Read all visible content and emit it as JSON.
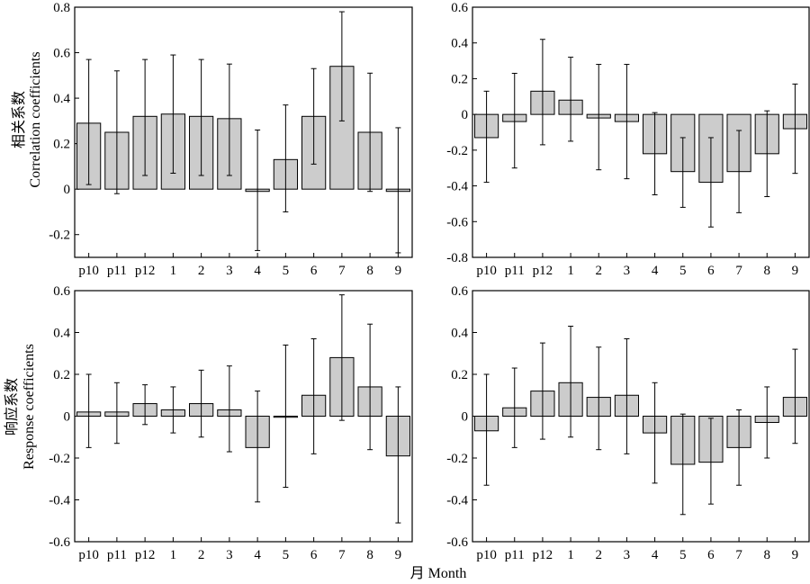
{
  "figure": {
    "ylabel_top_cn": "相关系数",
    "ylabel_top_en": "Correlation coefficients",
    "ylabel_bottom_cn": "响应系数",
    "ylabel_bottom_en": "Response coefficients",
    "xlabel": "月 Month"
  },
  "chart_data": [
    {
      "type": "bar",
      "panel": "top-left",
      "categories": [
        "p10",
        "p11",
        "p12",
        "1",
        "2",
        "3",
        "4",
        "5",
        "6",
        "7",
        "8",
        "9"
      ],
      "values": [
        0.29,
        0.25,
        0.32,
        0.33,
        0.32,
        0.31,
        -0.01,
        0.13,
        0.32,
        0.54,
        0.25,
        -0.01
      ],
      "error_low": [
        0.02,
        -0.02,
        0.06,
        0.07,
        0.06,
        0.06,
        -0.27,
        -0.1,
        0.11,
        0.3,
        -0.01,
        -0.28
      ],
      "error_high": [
        0.57,
        0.52,
        0.57,
        0.59,
        0.57,
        0.55,
        0.26,
        0.37,
        0.53,
        0.78,
        0.51,
        0.27
      ],
      "ylim": [
        -0.3,
        0.8
      ],
      "yticks": [
        -0.2,
        0,
        0.2,
        0.4,
        0.6,
        0.8
      ],
      "ytick_labels": [
        "-0.2",
        "0",
        "0.2",
        "0.4",
        "0.6",
        "0.8"
      ]
    },
    {
      "type": "bar",
      "panel": "top-right",
      "categories": [
        "p10",
        "p11",
        "p12",
        "1",
        "2",
        "3",
        "4",
        "5",
        "6",
        "7",
        "8",
        "9"
      ],
      "values": [
        -0.13,
        -0.04,
        0.13,
        0.08,
        -0.02,
        -0.04,
        -0.22,
        -0.32,
        -0.38,
        -0.32,
        -0.22,
        -0.08
      ],
      "error_low": [
        -0.38,
        -0.3,
        -0.17,
        -0.15,
        -0.31,
        -0.36,
        -0.45,
        -0.52,
        -0.63,
        -0.55,
        -0.46,
        -0.33
      ],
      "error_high": [
        0.13,
        0.23,
        0.42,
        0.32,
        0.28,
        0.28,
        0.01,
        -0.13,
        -0.13,
        -0.09,
        0.02,
        0.17
      ],
      "ylim": [
        -0.8,
        0.6
      ],
      "yticks": [
        -0.8,
        -0.6,
        -0.4,
        -0.2,
        0,
        0.2,
        0.4,
        0.6
      ],
      "ytick_labels": [
        "-0.8",
        "-0.6",
        "-0.4",
        "-0.2",
        "0",
        "0.2",
        "0.4",
        "0.6"
      ]
    },
    {
      "type": "bar",
      "panel": "bottom-left",
      "categories": [
        "p10",
        "p11",
        "p12",
        "1",
        "2",
        "3",
        "4",
        "5",
        "6",
        "7",
        "8",
        "9"
      ],
      "values": [
        0.02,
        0.02,
        0.06,
        0.03,
        0.06,
        0.03,
        -0.15,
        0.0,
        0.1,
        0.28,
        0.14,
        -0.19
      ],
      "error_low": [
        -0.15,
        -0.13,
        -0.04,
        -0.08,
        -0.1,
        -0.17,
        -0.41,
        -0.34,
        -0.18,
        -0.02,
        -0.16,
        -0.51
      ],
      "error_high": [
        0.2,
        0.16,
        0.15,
        0.14,
        0.22,
        0.24,
        0.12,
        0.34,
        0.37,
        0.58,
        0.44,
        0.14
      ],
      "ylim": [
        -0.6,
        0.6
      ],
      "yticks": [
        -0.6,
        -0.4,
        -0.2,
        0,
        0.2,
        0.4,
        0.6
      ],
      "ytick_labels": [
        "-0.6",
        "-0.4",
        "-0.2",
        "0",
        "0.2",
        "0.4",
        "0.6"
      ]
    },
    {
      "type": "bar",
      "panel": "bottom-right",
      "categories": [
        "p10",
        "p11",
        "p12",
        "1",
        "2",
        "3",
        "4",
        "5",
        "6",
        "7",
        "8",
        "9"
      ],
      "values": [
        -0.07,
        0.04,
        0.12,
        0.16,
        0.09,
        0.1,
        -0.08,
        -0.23,
        -0.22,
        -0.15,
        -0.03,
        0.09
      ],
      "error_low": [
        -0.33,
        -0.15,
        -0.11,
        -0.1,
        -0.16,
        -0.18,
        -0.32,
        -0.47,
        -0.42,
        -0.33,
        -0.2,
        -0.13
      ],
      "error_high": [
        0.2,
        0.23,
        0.35,
        0.43,
        0.33,
        0.37,
        0.16,
        0.01,
        -0.01,
        0.03,
        0.14,
        0.32
      ],
      "ylim": [
        -0.6,
        0.6
      ],
      "yticks": [
        -0.6,
        -0.4,
        -0.2,
        0,
        0.2,
        0.4,
        0.6
      ],
      "ytick_labels": [
        "-0.6",
        "-0.4",
        "-0.2",
        "0",
        "0.2",
        "0.4",
        "0.6"
      ]
    }
  ]
}
